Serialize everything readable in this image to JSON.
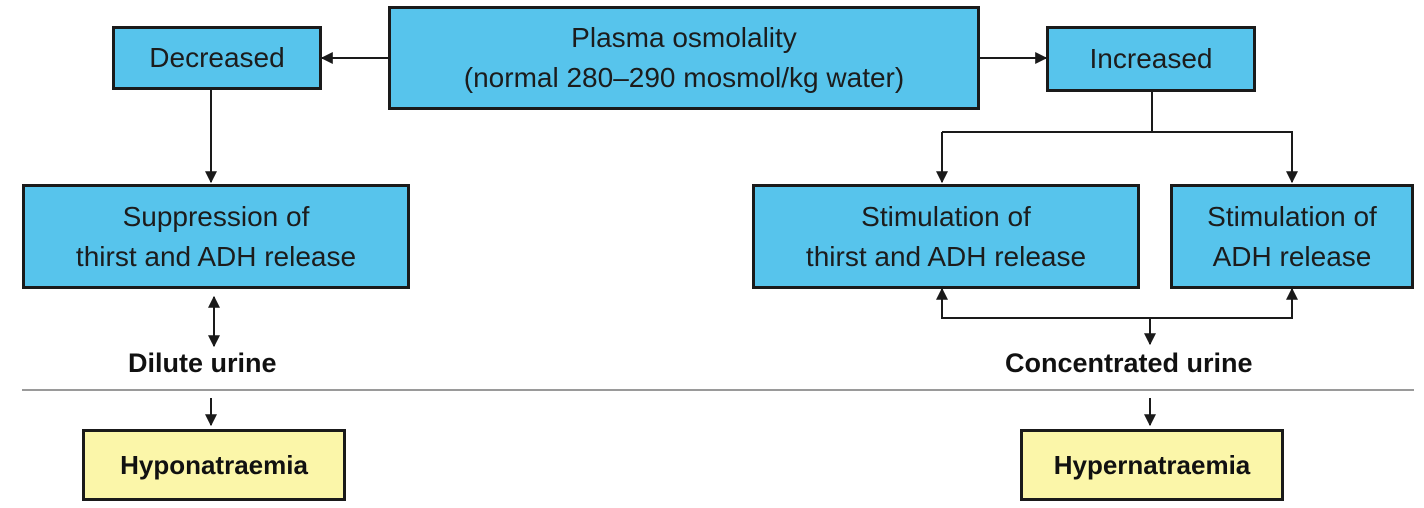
{
  "nodes": {
    "plasma": "Plasma osmolality\n(normal 280–290 mosmol/kg water)",
    "decreased": "Decreased",
    "increased": "Increased",
    "suppression": "Suppression of\nthirst and ADH release",
    "stimulation_thirst_adh": "Stimulation of\nthirst and ADH release",
    "stimulation_adh": "Stimulation of\nADH release"
  },
  "labels": {
    "dilute": "Dilute urine",
    "concentrated": "Concentrated urine"
  },
  "results": {
    "hypo": "Hyponatraemia",
    "hyper": "Hypernatraemia"
  },
  "colors": {
    "box_fill": "#57c4ec",
    "result_fill": "#fbf6a9",
    "line": "#1a1a1a",
    "divider": "#9a9a9a"
  }
}
